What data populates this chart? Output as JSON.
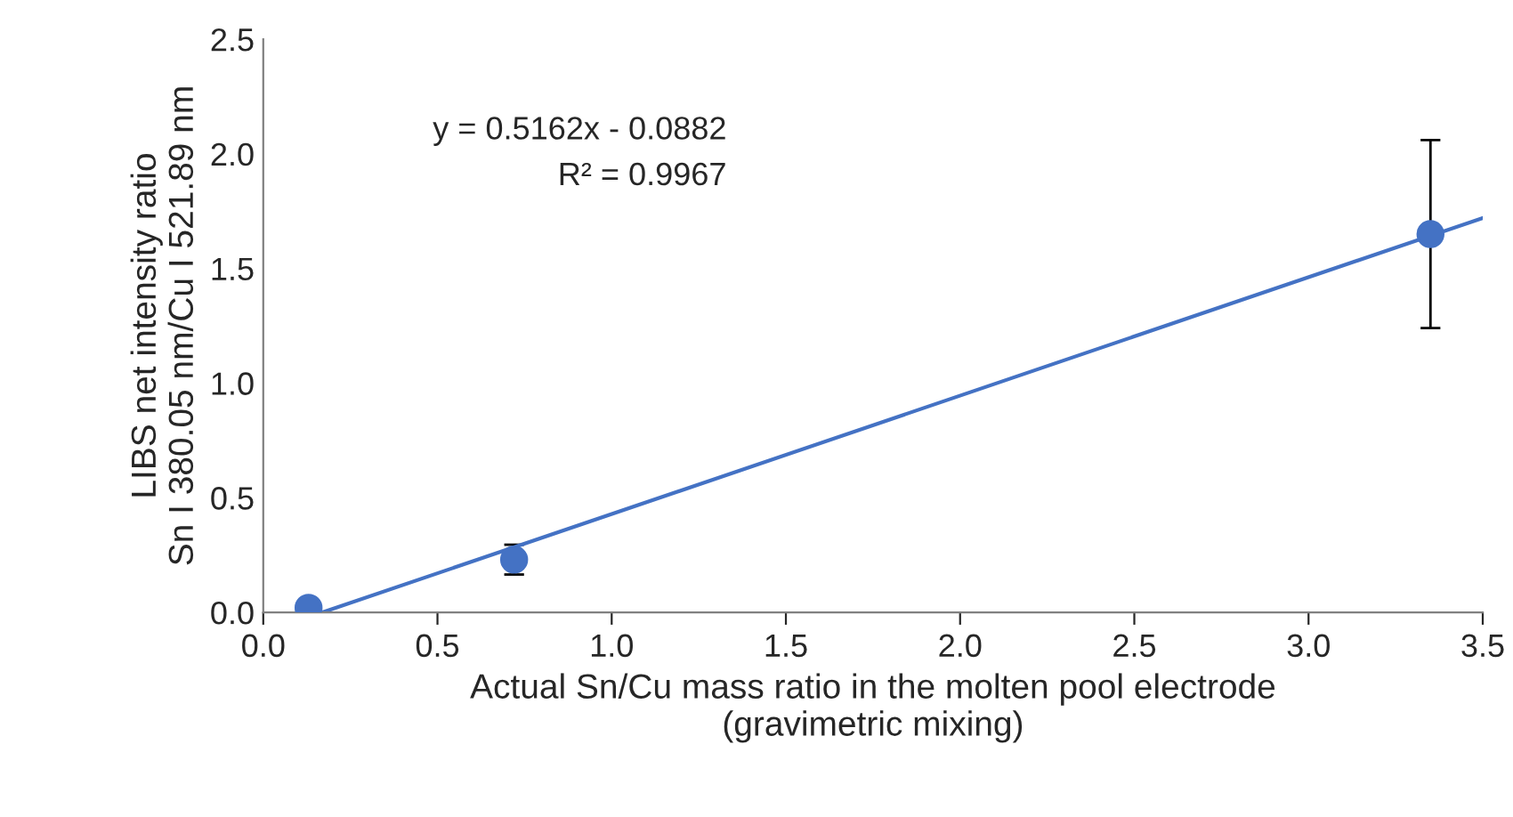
{
  "chart_data": {
    "type": "scatter",
    "xlabel": "Actual Sn/Cu mass ratio in the molten pool electrode\n(gravimetric mixing)",
    "ylabel": "LIBS net intensity ratio\nSn I 380.05 nm/Cu I 521.89 nm",
    "annotations": [
      "y = 0.5162x - 0.0882",
      "R² = 0.9967"
    ],
    "series": [
      {
        "marker": "circle",
        "color": "#4472c4",
        "x": [
          0.13,
          0.72,
          3.35
        ],
        "values": [
          0.02,
          0.23,
          1.65
        ],
        "errors": [
          0.02,
          0.065,
          [
            1.24,
            2.06
          ]
        ]
      },
      {
        "type": "line",
        "color": "#4472c4",
        "x": [
          0.17,
          3.5
        ],
        "values": [
          0.0,
          1.72
        ]
      }
    ],
    "xlim": [
      0,
      3.5
    ],
    "ylim": [
      0,
      2.5
    ],
    "xticks": [
      {
        "value": 0,
        "label": "0.0"
      },
      {
        "value": 0.5,
        "label": "0.5"
      },
      {
        "value": 1,
        "label": "1.0"
      },
      {
        "value": 1.5,
        "label": "1.5"
      },
      {
        "value": 2,
        "label": "2.0"
      },
      {
        "value": 2.5,
        "label": "2.5"
      },
      {
        "value": 3,
        "label": "3.0"
      },
      {
        "value": 3.5,
        "label": "3.5"
      }
    ],
    "yticks": [
      {
        "value": 0,
        "label": "0.0"
      },
      {
        "value": 0.5,
        "label": "0.5"
      },
      {
        "value": 1,
        "label": "1.0"
      },
      {
        "value": 1.5,
        "label": "1.5"
      },
      {
        "value": 2,
        "label": "2.0"
      },
      {
        "value": 2.5,
        "label": "2.5"
      }
    ],
    "grid": false,
    "legend": false
  }
}
